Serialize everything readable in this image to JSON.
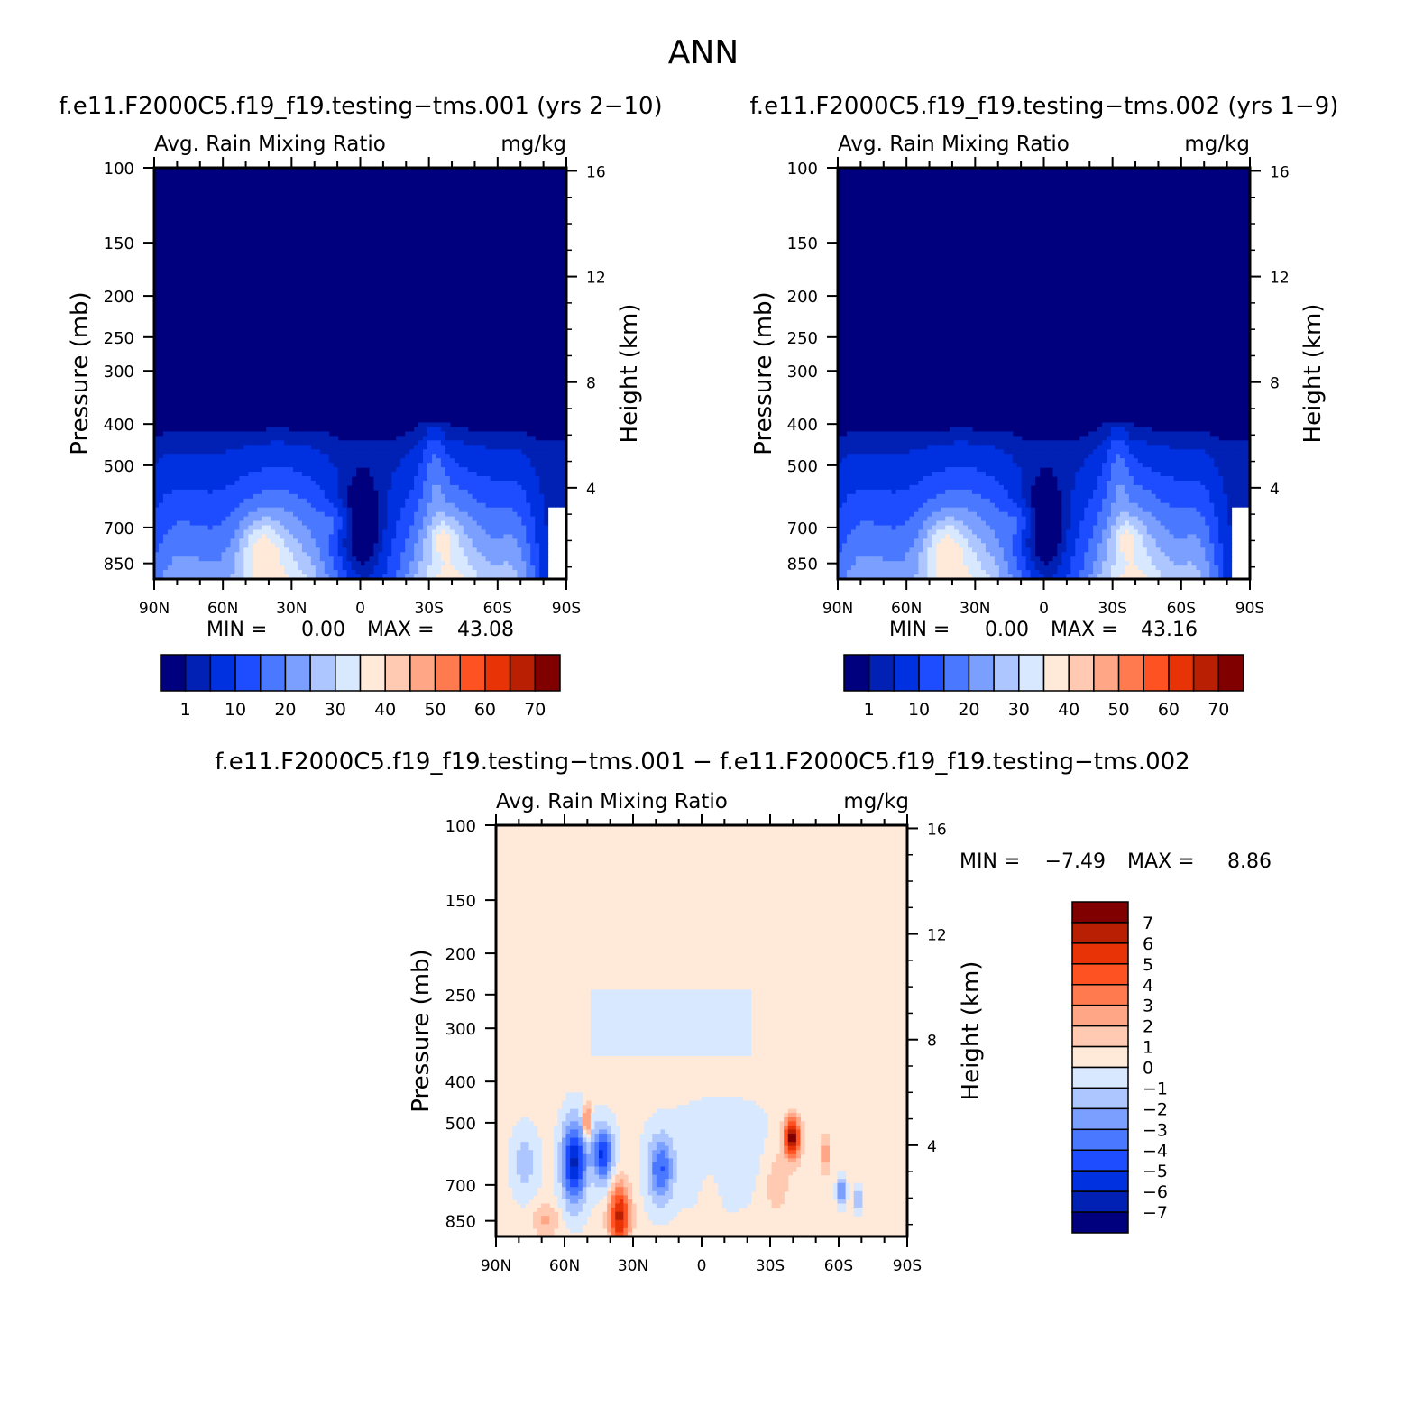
{
  "page": {
    "title": "ANN"
  },
  "colors": {
    "field": [
      "#00007f",
      "#0021b4",
      "#0031e1",
      "#1e4cff",
      "#4a78ff",
      "#7b9fff",
      "#adc6ff",
      "#d8e8ff",
      "#ffe9d9",
      "#ffcab1",
      "#ffa686",
      "#ff7a4e",
      "#ff5222",
      "#e73305",
      "#b92003",
      "#800000"
    ],
    "diff": [
      "#00007f",
      "#0021b4",
      "#0031e1",
      "#1e4cff",
      "#4a78ff",
      "#7b9fff",
      "#adc6ff",
      "#d8e8ff",
      "#ffe9d9",
      "#ffcab1",
      "#ffa686",
      "#ff7a4e",
      "#ff5222",
      "#e73305",
      "#b92003",
      "#800000"
    ]
  },
  "panels": [
    {
      "title": "f.e11.F2000C5.f19_f19.testing−tms.001 (yrs 2−10)",
      "variable": "Avg. Rain Mixing Ratio",
      "units": "mg/kg",
      "ylabel": "Pressure (mb)",
      "ylabel_right": "Height (km)",
      "stats": {
        "min_label": "MIN =",
        "min": "0.00",
        "max_label": "MAX =",
        "max": "43.08"
      }
    },
    {
      "title": "f.e11.F2000C5.f19_f19.testing−tms.002 (yrs 1−9)",
      "variable": "Avg. Rain Mixing Ratio",
      "units": "mg/kg",
      "ylabel": "Pressure (mb)",
      "ylabel_right": "Height (km)",
      "stats": {
        "min_label": "MIN =",
        "min": "0.00",
        "max_label": "MAX =",
        "max": "43.16"
      }
    },
    {
      "title": "f.e11.F2000C5.f19_f19.testing−tms.001 − f.e11.F2000C5.f19_f19.testing−tms.002",
      "variable": "Avg. Rain Mixing Ratio",
      "units": "mg/kg",
      "ylabel": "Pressure (mb)",
      "ylabel_right": "Height (km)",
      "stats": {
        "min_label": "MIN =",
        "min": "−7.49",
        "max_label": "MAX =",
        "max": "8.86"
      }
    }
  ],
  "chart_data": [
    {
      "type": "heatmap",
      "title": "f.e11.F2000C5.f19_f19.testing−tms.001 (yrs 2−10)",
      "variable": "Avg. Rain Mixing Ratio",
      "units": "mg/kg",
      "x_ticks": [
        "90N",
        "60N",
        "30N",
        "0",
        "30S",
        "60S",
        "90S"
      ],
      "x_values": [
        90,
        60,
        30,
        0,
        -30,
        -60,
        -90
      ],
      "xlim": [
        90,
        -90
      ],
      "y_ticks": [
        "100",
        "150",
        "200",
        "250",
        "300",
        "400",
        "500",
        "700",
        "850"
      ],
      "y_values": [
        100,
        150,
        200,
        250,
        300,
        400,
        500,
        700,
        850
      ],
      "ylim": [
        100,
        925
      ],
      "y_scale": "log",
      "y2_ticks": [
        "16",
        "12",
        "8",
        "4"
      ],
      "y2_values": [
        16,
        12,
        8,
        4
      ],
      "colorbar_labels": [
        "1",
        "10",
        "20",
        "30",
        "40",
        "50",
        "60",
        "70"
      ],
      "levels": [
        1,
        5,
        10,
        15,
        20,
        25,
        30,
        35,
        40,
        45,
        50,
        55,
        60,
        65,
        70
      ],
      "min": 0.0,
      "max": 43.08
    },
    {
      "type": "heatmap",
      "title": "f.e11.F2000C5.f19_f19.testing−tms.002 (yrs 1−9)",
      "variable": "Avg. Rain Mixing Ratio",
      "units": "mg/kg",
      "x_ticks": [
        "90N",
        "60N",
        "30N",
        "0",
        "30S",
        "60S",
        "90S"
      ],
      "x_values": [
        90,
        60,
        30,
        0,
        -30,
        -60,
        -90
      ],
      "xlim": [
        90,
        -90
      ],
      "y_ticks": [
        "100",
        "150",
        "200",
        "250",
        "300",
        "400",
        "500",
        "700",
        "850"
      ],
      "y_values": [
        100,
        150,
        200,
        250,
        300,
        400,
        500,
        700,
        850
      ],
      "ylim": [
        100,
        925
      ],
      "y_scale": "log",
      "y2_ticks": [
        "16",
        "12",
        "8",
        "4"
      ],
      "y2_values": [
        16,
        12,
        8,
        4
      ],
      "colorbar_labels": [
        "1",
        "10",
        "20",
        "30",
        "40",
        "50",
        "60",
        "70"
      ],
      "levels": [
        1,
        5,
        10,
        15,
        20,
        25,
        30,
        35,
        40,
        45,
        50,
        55,
        60,
        65,
        70
      ],
      "min": 0.0,
      "max": 43.16
    },
    {
      "type": "heatmap",
      "title": "f.e11.F2000C5.f19_f19.testing−tms.001 − f.e11.F2000C5.f19_f19.testing−tms.002",
      "variable": "Avg. Rain Mixing Ratio",
      "units": "mg/kg",
      "x_ticks": [
        "90N",
        "60N",
        "30N",
        "0",
        "30S",
        "60S",
        "90S"
      ],
      "x_values": [
        90,
        60,
        30,
        0,
        -30,
        -60,
        -90
      ],
      "xlim": [
        90,
        -90
      ],
      "y_ticks": [
        "100",
        "150",
        "200",
        "250",
        "300",
        "400",
        "500",
        "700",
        "850"
      ],
      "y_values": [
        100,
        150,
        200,
        250,
        300,
        400,
        500,
        700,
        850
      ],
      "ylim": [
        100,
        925
      ],
      "y_scale": "log",
      "y2_ticks": [
        "16",
        "12",
        "8",
        "4"
      ],
      "y2_values": [
        16,
        12,
        8,
        4
      ],
      "colorbar_labels": [
        "7",
        "6",
        "5",
        "4",
        "3",
        "2",
        "1",
        "0",
        "−1",
        "−2",
        "−3",
        "−4",
        "−5",
        "−6",
        "−7"
      ],
      "levels": [
        7,
        6,
        5,
        4,
        3,
        2,
        1,
        0,
        -1,
        -2,
        -3,
        -4,
        -5,
        -6,
        -7
      ],
      "min": -7.49,
      "max": 8.86
    }
  ]
}
